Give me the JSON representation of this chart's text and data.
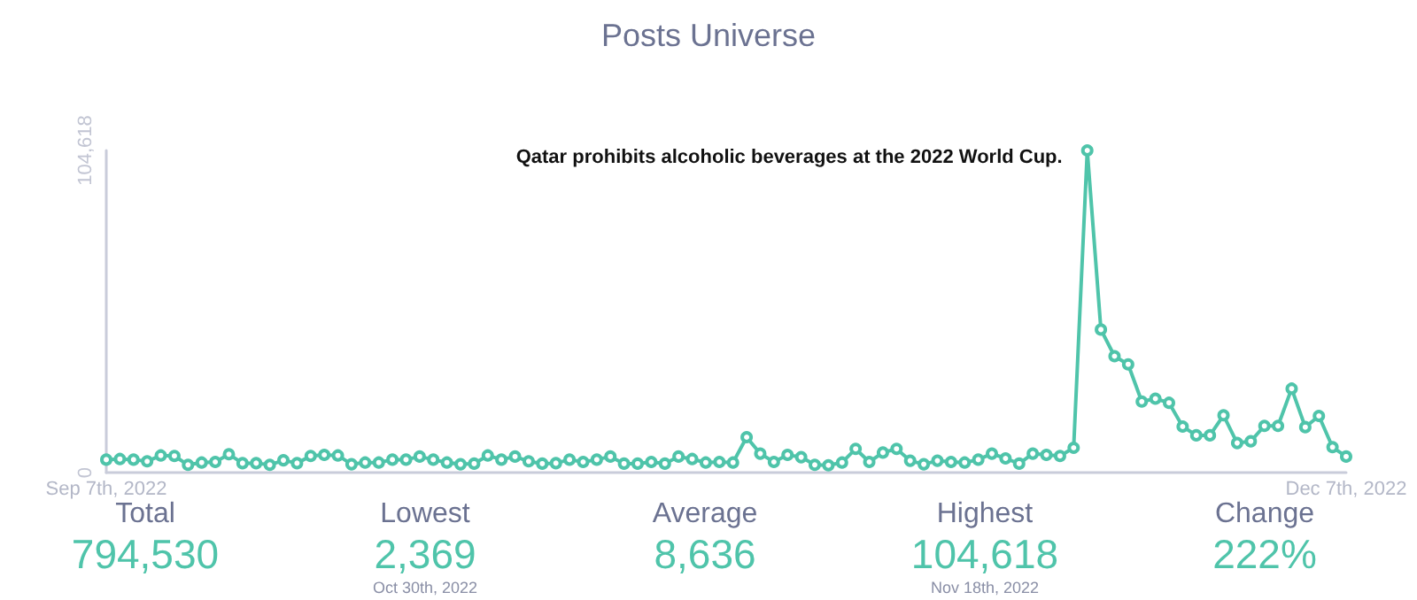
{
  "chart_data": [
    {
      "type": "line",
      "title": "Posts Universe",
      "categories": [
        "Sep 7th, 2022",
        null,
        null,
        null,
        null,
        null,
        null,
        null,
        null,
        null,
        null,
        null,
        null,
        null,
        null,
        null,
        null,
        null,
        null,
        null,
        null,
        null,
        null,
        null,
        null,
        null,
        null,
        null,
        null,
        null,
        null,
        null,
        null,
        null,
        null,
        null,
        null,
        null,
        null,
        null,
        null,
        null,
        null,
        null,
        null,
        null,
        null,
        null,
        null,
        null,
        null,
        null,
        null,
        null,
        null,
        null,
        null,
        null,
        null,
        null,
        null,
        null,
        null,
        null,
        null,
        null,
        null,
        null,
        null,
        null,
        null,
        null,
        null,
        null,
        null,
        null,
        null,
        null,
        null,
        null,
        null,
        null,
        null,
        null,
        null,
        null,
        null,
        null,
        null,
        null,
        null,
        "Dec 7th, 2022"
      ],
      "values": [
        4200,
        4400,
        4200,
        3650,
        5550,
        5400,
        2500,
        3250,
        3450,
        5950,
        3050,
        3050,
        2500,
        4000,
        3050,
        5400,
        5750,
        5550,
        2700,
        3250,
        3250,
        4200,
        4200,
        5200,
        4200,
        3250,
        2700,
        2900,
        5550,
        4200,
        5200,
        3650,
        2900,
        3050,
        4200,
        3450,
        4200,
        5200,
        2900,
        2900,
        3450,
        2900,
        5200,
        4400,
        3250,
        3450,
        3250,
        11500,
        6150,
        3450,
        5750,
        5000,
        2500,
        2369,
        3250,
        7700,
        3450,
        6500,
        7700,
        3850,
        2700,
        3850,
        3450,
        3250,
        4200,
        6150,
        4600,
        2900,
        6150,
        5750,
        5400,
        8050,
        104618,
        46450,
        37800,
        35150,
        23050,
        24000,
        22650,
        14950,
        12100,
        12100,
        18600,
        9600,
        10150,
        15150,
        15150,
        27250,
        14750,
        18400,
        8250,
        5200
      ],
      "color": "#4fc4aa",
      "marker": "circle",
      "ylim": [
        0,
        104618
      ],
      "yticks": [
        0,
        {
          "value": 104618,
          "label": "104,618"
        }
      ],
      "annotations": [
        "Qatar prohibits alcoholic beverages at the 2022 World Cup."
      ]
    },
    {
      "type": "other",
      "categories": [
        "Total",
        "Lowest",
        "Average",
        "Highest",
        "Change"
      ],
      "value_labels": [
        "794,530",
        "2,369",
        "8,636",
        "104,618",
        "222%"
      ],
      "annotations": [
        {
          "text": "Oct 30th, 2022",
          "x": "Lowest"
        },
        {
          "text": "Nov 18th, 2022",
          "x": "Highest"
        }
      ]
    }
  ]
}
